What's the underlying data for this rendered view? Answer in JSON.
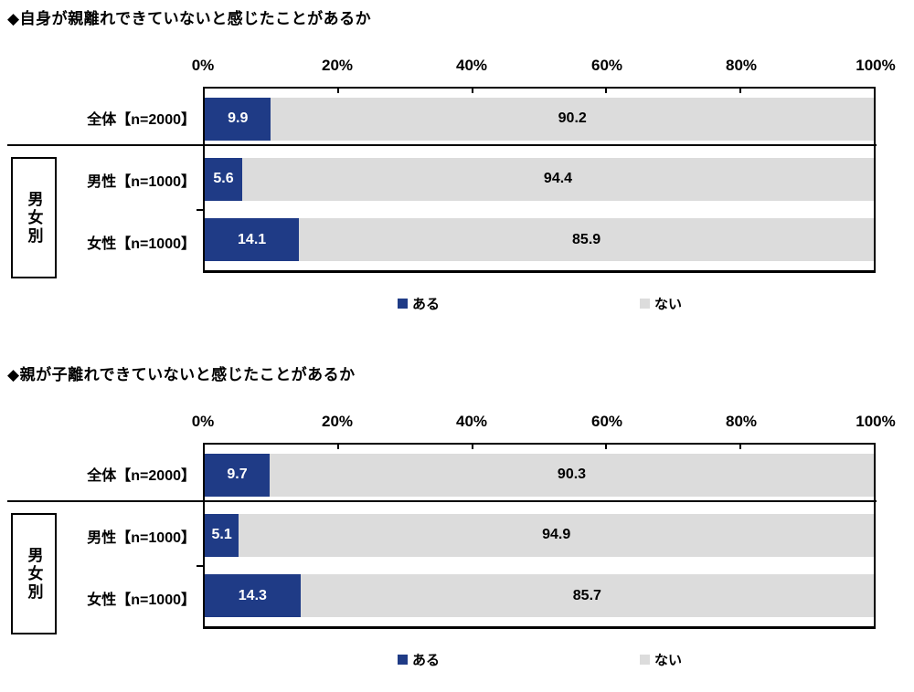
{
  "colors": {
    "aru_blue": "#1F3B86",
    "nai_gray": "#DCDCDC",
    "border_black": "#000000",
    "value_on_blue": "#ffffff",
    "value_on_gray": "#000000",
    "background": "#ffffff"
  },
  "chart_data": [
    {
      "type": "bar",
      "stacked": true,
      "orientation": "horizontal",
      "title": "◆自身が親離れできていないと感じたことがあるか",
      "categories": [
        "全体【n=2000】",
        "男性【n=1000】",
        "女性【n=1000】"
      ],
      "series": [
        {
          "name": "ある",
          "color": "#1F3B86",
          "values": [
            9.9,
            5.6,
            14.1
          ]
        },
        {
          "name": "ない",
          "color": "#DCDCDC",
          "values": [
            90.2,
            94.4,
            85.9
          ]
        }
      ],
      "xlim": [
        0,
        100
      ],
      "x_ticks": [
        "0%",
        "20%",
        "40%",
        "60%",
        "80%",
        "100%"
      ],
      "grid": false,
      "legend_position": "bottom",
      "group_label": "男女別",
      "group_rows": [
        1,
        2
      ]
    },
    {
      "type": "bar",
      "stacked": true,
      "orientation": "horizontal",
      "title": "◆親が子離れできていないと感じたことがあるか",
      "categories": [
        "全体【n=2000】",
        "男性【n=1000】",
        "女性【n=1000】"
      ],
      "series": [
        {
          "name": "ある",
          "color": "#1F3B86",
          "values": [
            9.7,
            5.1,
            14.3
          ]
        },
        {
          "name": "ない",
          "color": "#DCDCDC",
          "values": [
            90.3,
            94.9,
            85.7
          ]
        }
      ],
      "xlim": [
        0,
        100
      ],
      "x_ticks": [
        "0%",
        "20%",
        "40%",
        "60%",
        "80%",
        "100%"
      ],
      "grid": false,
      "legend_position": "bottom",
      "group_label": "男女別",
      "group_rows": [
        1,
        2
      ]
    }
  ]
}
